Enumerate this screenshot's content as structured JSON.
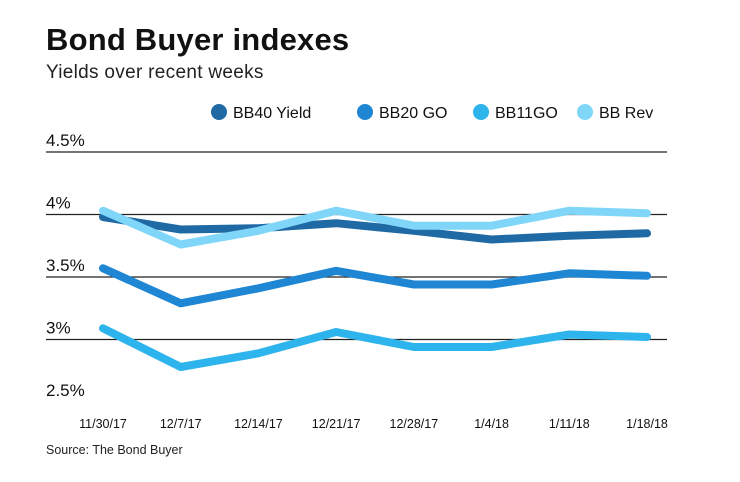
{
  "chart_data": {
    "type": "line",
    "title": "Bond Buyer indexes",
    "subtitle": "Yields over recent weeks",
    "source": "Source: The Bond Buyer",
    "xlabel": "",
    "ylabel": "",
    "ylim": [
      2.5,
      4.5
    ],
    "yticks": [
      2.5,
      3,
      3.5,
      4,
      4.5
    ],
    "ytick_labels": [
      "2.5%",
      "3%",
      "3.5%",
      "4%",
      "4.5%"
    ],
    "categories": [
      "11/30/17",
      "12/7/17",
      "12/14/17",
      "12/21/17",
      "12/28/17",
      "1/4/18",
      "1/11/18",
      "1/18/18"
    ],
    "legend_position": "top-right",
    "series": [
      {
        "name": "BB40 Yield",
        "color": "#1f6aa5",
        "values": [
          3.98,
          3.88,
          3.89,
          3.93,
          3.87,
          3.8,
          3.83,
          3.85
        ]
      },
      {
        "name": "BB20 GO",
        "color": "#1f86d4",
        "values": [
          3.57,
          3.29,
          3.41,
          3.55,
          3.44,
          3.44,
          3.53,
          3.51
        ]
      },
      {
        "name": "BB11GO",
        "color": "#2db4ec",
        "values": [
          3.09,
          2.78,
          2.89,
          3.06,
          2.94,
          2.94,
          3.04,
          3.02
        ]
      },
      {
        "name": "BB Rev",
        "color": "#7fd6f8",
        "values": [
          4.03,
          3.76,
          3.87,
          4.03,
          3.91,
          3.91,
          4.03,
          4.01
        ]
      }
    ]
  }
}
